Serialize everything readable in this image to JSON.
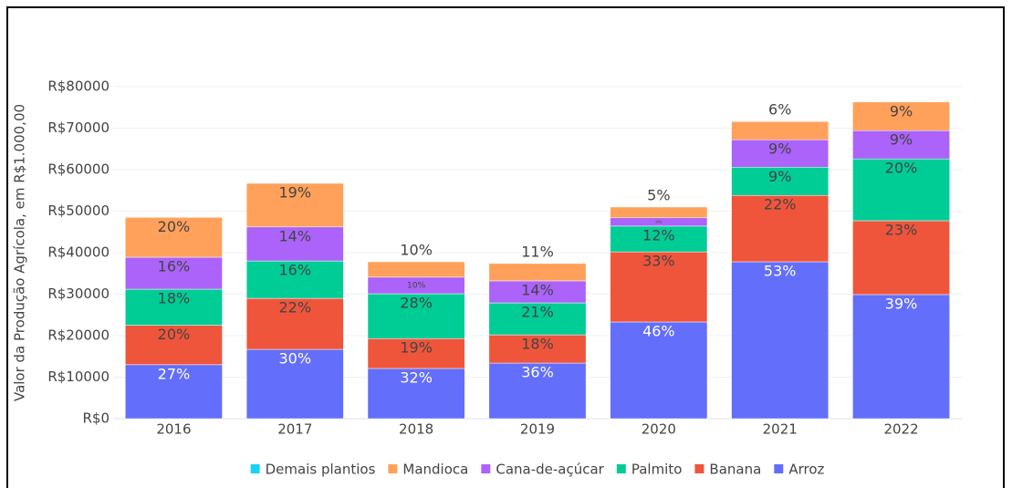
{
  "chart_data": {
    "type": "stacked_bar",
    "y_label": "Valor da Produção Agrícola, em R$1.000,00",
    "categories": [
      "2016",
      "2017",
      "2018",
      "2019",
      "2020",
      "2021",
      "2022"
    ],
    "series": [
      {
        "name": "Arroz",
        "color": "#636efa",
        "text_color": "#ffffff",
        "values": [
          13000,
          16700,
          12100,
          13400,
          23300,
          37800,
          29900
        ],
        "value_labels": [
          "27%",
          "30%",
          "32%",
          "36%",
          "46%",
          "53%",
          "39%"
        ]
      },
      {
        "name": "Banana",
        "color": "#ef553b",
        "text_color": "#444444",
        "values": [
          9500,
          12300,
          7200,
          6800,
          16900,
          16000,
          17800
        ],
        "value_labels": [
          "20%",
          "22%",
          "19%",
          "18%",
          "33%",
          "22%",
          "23%"
        ]
      },
      {
        "name": "Palmito",
        "color": "#00cc96",
        "text_color": "#444444",
        "values": [
          8700,
          9000,
          10800,
          7700,
          6200,
          6800,
          14900
        ],
        "value_labels": [
          "18%",
          "16%",
          "28%",
          "21%",
          "12%",
          "9%",
          "20%"
        ]
      },
      {
        "name": "Cana-de-açúcar",
        "color": "#ab63fa",
        "text_color": "#444444",
        "values": [
          7700,
          8200,
          4000,
          5300,
          2000,
          6600,
          6800
        ],
        "value_labels": [
          "16%",
          "14%",
          "10%",
          "14%",
          "4%",
          "9%",
          "9%"
        ]
      },
      {
        "name": "Mandioca",
        "color": "#ffa15a",
        "text_color": "#444444",
        "values": [
          9600,
          10500,
          3700,
          4200,
          2600,
          4400,
          6900
        ],
        "value_labels": [
          "20%",
          "19%",
          "10%",
          "11%",
          "5%",
          "6%",
          "9%"
        ]
      },
      {
        "name": "Demais plantios",
        "color": "#19d3f3",
        "text_color": "#444444",
        "values": [
          0,
          0,
          0,
          0,
          0,
          0,
          0
        ]
      }
    ],
    "ylim": [
      0,
      80000
    ],
    "yticks": [
      {
        "value": 0,
        "label": "R$0"
      },
      {
        "value": 10000,
        "label": "R$10000"
      },
      {
        "value": 20000,
        "label": "R$20000"
      },
      {
        "value": 30000,
        "label": "R$30000"
      },
      {
        "value": 40000,
        "label": "R$40000"
      },
      {
        "value": 50000,
        "label": "R$50000"
      },
      {
        "value": 60000,
        "label": "R$60000"
      },
      {
        "value": 70000,
        "label": "R$70000"
      },
      {
        "value": 80000,
        "label": "R$80000"
      }
    ],
    "grid": true,
    "legend": "bottom",
    "legend_reversed": true
  }
}
